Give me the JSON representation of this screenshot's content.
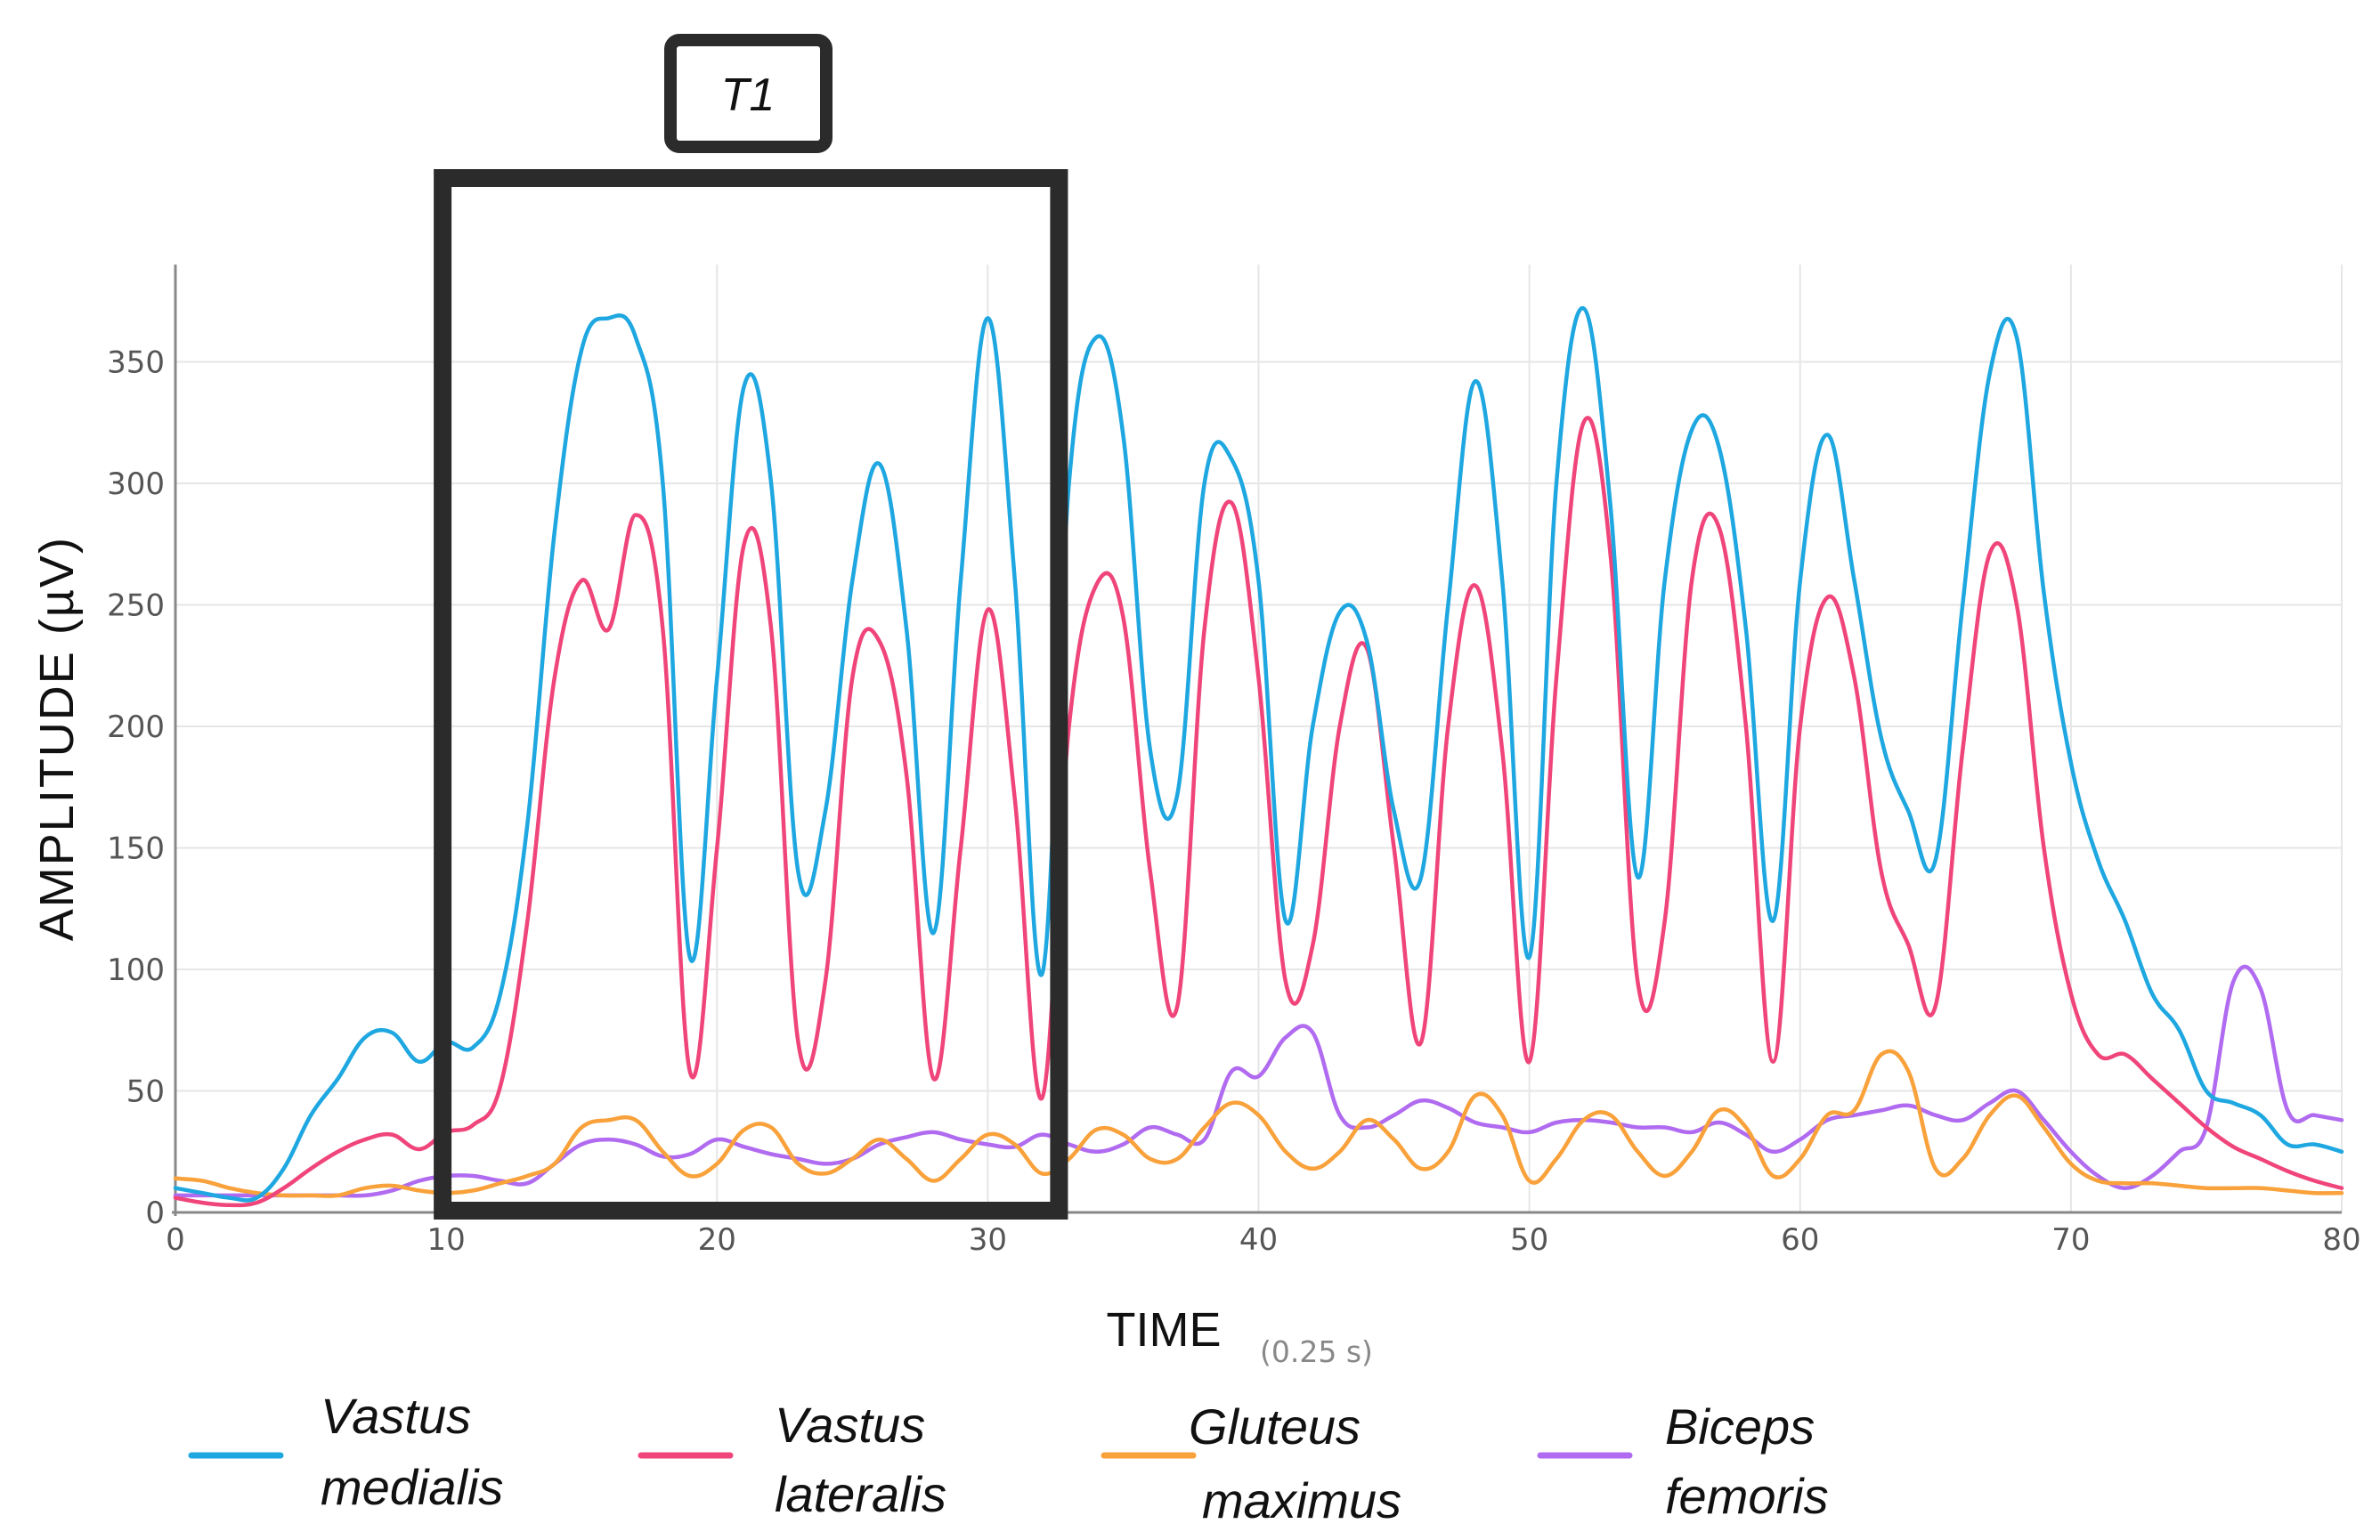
{
  "chart_data": {
    "type": "line",
    "title": "",
    "xlabel": "TIME",
    "xunit": "(0.25 s)",
    "ylabel": "AMPLITUDE  (µV)",
    "xlim": [
      0,
      80
    ],
    "ylim": [
      0,
      390
    ],
    "xticks": [
      0,
      10,
      20,
      30,
      40,
      50,
      60,
      70,
      80
    ],
    "yticks": [
      0,
      50,
      100,
      150,
      200,
      250,
      300,
      350
    ],
    "grid": true,
    "annotation": {
      "label": "T1",
      "x_start": 10,
      "x_end": 32.5
    },
    "legend_position": "bottom",
    "series": [
      {
        "name": "Vastus medialis",
        "label_lines": [
          "Vastus",
          "medialis"
        ],
        "color": "#1EA7E0",
        "points": [
          [
            0,
            10
          ],
          [
            1,
            8
          ],
          [
            2,
            6
          ],
          [
            3,
            6
          ],
          [
            4,
            18
          ],
          [
            5,
            40
          ],
          [
            6,
            55
          ],
          [
            7,
            72
          ],
          [
            8,
            74
          ],
          [
            9,
            62
          ],
          [
            10,
            70
          ],
          [
            11,
            68
          ],
          [
            12,
            90
          ],
          [
            13,
            160
          ],
          [
            14,
            280
          ],
          [
            15,
            355
          ],
          [
            16,
            368
          ],
          [
            17,
            360
          ],
          [
            18,
            300
          ],
          [
            19,
            105
          ],
          [
            20,
            220
          ],
          [
            21,
            340
          ],
          [
            22,
            300
          ],
          [
            23,
            140
          ],
          [
            24,
            165
          ],
          [
            25,
            260
          ],
          [
            26,
            308
          ],
          [
            27,
            240
          ],
          [
            28,
            115
          ],
          [
            29,
            260
          ],
          [
            30,
            368
          ],
          [
            31,
            260
          ],
          [
            32,
            98
          ],
          [
            33,
            300
          ],
          [
            34,
            360
          ],
          [
            35,
            320
          ],
          [
            36,
            190
          ],
          [
            37,
            172
          ],
          [
            38,
            300
          ],
          [
            39,
            310
          ],
          [
            40,
            260
          ],
          [
            41,
            120
          ],
          [
            42,
            200
          ],
          [
            43,
            247
          ],
          [
            44,
            235
          ],
          [
            45,
            165
          ],
          [
            46,
            138
          ],
          [
            47,
            250
          ],
          [
            48,
            342
          ],
          [
            49,
            260
          ],
          [
            50,
            105
          ],
          [
            51,
            300
          ],
          [
            52,
            372
          ],
          [
            53,
            290
          ],
          [
            54,
            138
          ],
          [
            55,
            260
          ],
          [
            56,
            322
          ],
          [
            57,
            315
          ],
          [
            58,
            240
          ],
          [
            59,
            120
          ],
          [
            60,
            260
          ],
          [
            61,
            320
          ],
          [
            62,
            260
          ],
          [
            63,
            195
          ],
          [
            64,
            165
          ],
          [
            65,
            145
          ],
          [
            66,
            250
          ],
          [
            67,
            345
          ],
          [
            68,
            360
          ],
          [
            69,
            255
          ],
          [
            70,
            185
          ],
          [
            71,
            145
          ],
          [
            72,
            120
          ],
          [
            73,
            90
          ],
          [
            74,
            75
          ],
          [
            75,
            50
          ],
          [
            76,
            45
          ],
          [
            77,
            40
          ],
          [
            78,
            28
          ],
          [
            79,
            28
          ],
          [
            80,
            25
          ]
        ]
      },
      {
        "name": "Vastus lateralis",
        "label_lines": [
          "Vastus",
          "lateralis"
        ],
        "color": "#F0457A",
        "points": [
          [
            0,
            6
          ],
          [
            1,
            4
          ],
          [
            2,
            3
          ],
          [
            3,
            4
          ],
          [
            4,
            10
          ],
          [
            5,
            18
          ],
          [
            6,
            25
          ],
          [
            7,
            30
          ],
          [
            8,
            32
          ],
          [
            9,
            26
          ],
          [
            10,
            33
          ],
          [
            11,
            36
          ],
          [
            12,
            52
          ],
          [
            13,
            120
          ],
          [
            14,
            220
          ],
          [
            15,
            260
          ],
          [
            16,
            240
          ],
          [
            17,
            287
          ],
          [
            18,
            240
          ],
          [
            19,
            58
          ],
          [
            20,
            150
          ],
          [
            21,
            275
          ],
          [
            22,
            240
          ],
          [
            23,
            70
          ],
          [
            24,
            95
          ],
          [
            25,
            220
          ],
          [
            26,
            235
          ],
          [
            27,
            180
          ],
          [
            28,
            55
          ],
          [
            29,
            150
          ],
          [
            30,
            248
          ],
          [
            31,
            170
          ],
          [
            32,
            47
          ],
          [
            33,
            200
          ],
          [
            34,
            258
          ],
          [
            35,
            245
          ],
          [
            36,
            140
          ],
          [
            37,
            85
          ],
          [
            38,
            240
          ],
          [
            39,
            292
          ],
          [
            40,
            220
          ],
          [
            41,
            95
          ],
          [
            42,
            110
          ],
          [
            43,
            200
          ],
          [
            44,
            232
          ],
          [
            45,
            150
          ],
          [
            46,
            70
          ],
          [
            47,
            200
          ],
          [
            48,
            258
          ],
          [
            49,
            190
          ],
          [
            50,
            62
          ],
          [
            51,
            220
          ],
          [
            52,
            325
          ],
          [
            53,
            270
          ],
          [
            54,
            95
          ],
          [
            55,
            120
          ],
          [
            56,
            260
          ],
          [
            57,
            282
          ],
          [
            58,
            200
          ],
          [
            59,
            62
          ],
          [
            60,
            200
          ],
          [
            61,
            253
          ],
          [
            62,
            220
          ],
          [
            63,
            140
          ],
          [
            64,
            110
          ],
          [
            65,
            85
          ],
          [
            66,
            190
          ],
          [
            67,
            271
          ],
          [
            68,
            250
          ],
          [
            69,
            150
          ],
          [
            70,
            90
          ],
          [
            71,
            65
          ],
          [
            72,
            65
          ],
          [
            73,
            55
          ],
          [
            74,
            45
          ],
          [
            75,
            35
          ],
          [
            76,
            27
          ],
          [
            77,
            22
          ],
          [
            78,
            17
          ],
          [
            79,
            13
          ],
          [
            80,
            10
          ]
        ]
      },
      {
        "name": "Gluteus maximus",
        "label_lines": [
          "Gluteus",
          "maximus"
        ],
        "color": "#F9A13A",
        "points": [
          [
            0,
            14
          ],
          [
            1,
            13
          ],
          [
            2,
            10
          ],
          [
            3,
            8
          ],
          [
            4,
            7
          ],
          [
            5,
            7
          ],
          [
            6,
            7
          ],
          [
            7,
            10
          ],
          [
            8,
            11
          ],
          [
            9,
            9
          ],
          [
            10,
            8
          ],
          [
            11,
            9
          ],
          [
            12,
            12
          ],
          [
            13,
            15
          ],
          [
            14,
            20
          ],
          [
            15,
            35
          ],
          [
            16,
            38
          ],
          [
            17,
            38
          ],
          [
            18,
            25
          ],
          [
            19,
            15
          ],
          [
            20,
            20
          ],
          [
            21,
            34
          ],
          [
            22,
            35
          ],
          [
            23,
            20
          ],
          [
            24,
            16
          ],
          [
            25,
            22
          ],
          [
            26,
            30
          ],
          [
            27,
            22
          ],
          [
            28,
            13
          ],
          [
            29,
            22
          ],
          [
            30,
            32
          ],
          [
            31,
            28
          ],
          [
            32,
            16
          ],
          [
            33,
            22
          ],
          [
            34,
            34
          ],
          [
            35,
            32
          ],
          [
            36,
            22
          ],
          [
            37,
            22
          ],
          [
            38,
            35
          ],
          [
            39,
            45
          ],
          [
            40,
            40
          ],
          [
            41,
            25
          ],
          [
            42,
            18
          ],
          [
            43,
            25
          ],
          [
            44,
            38
          ],
          [
            45,
            30
          ],
          [
            46,
            18
          ],
          [
            47,
            25
          ],
          [
            48,
            48
          ],
          [
            49,
            40
          ],
          [
            50,
            13
          ],
          [
            51,
            22
          ],
          [
            52,
            38
          ],
          [
            53,
            40
          ],
          [
            54,
            25
          ],
          [
            55,
            15
          ],
          [
            56,
            25
          ],
          [
            57,
            42
          ],
          [
            58,
            35
          ],
          [
            59,
            15
          ],
          [
            60,
            22
          ],
          [
            61,
            40
          ],
          [
            62,
            42
          ],
          [
            63,
            65
          ],
          [
            64,
            58
          ],
          [
            65,
            18
          ],
          [
            66,
            22
          ],
          [
            67,
            40
          ],
          [
            68,
            48
          ],
          [
            69,
            35
          ],
          [
            70,
            20
          ],
          [
            71,
            13
          ],
          [
            72,
            12
          ],
          [
            73,
            12
          ],
          [
            74,
            11
          ],
          [
            75,
            10
          ],
          [
            76,
            10
          ],
          [
            77,
            10
          ],
          [
            78,
            9
          ],
          [
            79,
            8
          ],
          [
            80,
            8
          ]
        ]
      },
      {
        "name": "Biceps femoris",
        "label_lines": [
          "Biceps",
          "femoris"
        ],
        "color": "#B06BF0",
        "points": [
          [
            0,
            7
          ],
          [
            1,
            7
          ],
          [
            2,
            7
          ],
          [
            3,
            7
          ],
          [
            4,
            7
          ],
          [
            5,
            7
          ],
          [
            6,
            7
          ],
          [
            7,
            7
          ],
          [
            8,
            9
          ],
          [
            9,
            13
          ],
          [
            10,
            15
          ],
          [
            11,
            15
          ],
          [
            12,
            13
          ],
          [
            13,
            12
          ],
          [
            14,
            20
          ],
          [
            15,
            28
          ],
          [
            16,
            30
          ],
          [
            17,
            28
          ],
          [
            18,
            23
          ],
          [
            19,
            24
          ],
          [
            20,
            30
          ],
          [
            21,
            27
          ],
          [
            22,
            24
          ],
          [
            23,
            22
          ],
          [
            24,
            20
          ],
          [
            25,
            22
          ],
          [
            26,
            28
          ],
          [
            27,
            31
          ],
          [
            28,
            33
          ],
          [
            29,
            30
          ],
          [
            30,
            28
          ],
          [
            31,
            27
          ],
          [
            32,
            32
          ],
          [
            33,
            28
          ],
          [
            34,
            25
          ],
          [
            35,
            28
          ],
          [
            36,
            35
          ],
          [
            37,
            32
          ],
          [
            38,
            30
          ],
          [
            39,
            58
          ],
          [
            40,
            56
          ],
          [
            41,
            72
          ],
          [
            42,
            74
          ],
          [
            43,
            40
          ],
          [
            44,
            35
          ],
          [
            45,
            40
          ],
          [
            46,
            46
          ],
          [
            47,
            43
          ],
          [
            48,
            37
          ],
          [
            49,
            35
          ],
          [
            50,
            33
          ],
          [
            51,
            37
          ],
          [
            52,
            38
          ],
          [
            53,
            37
          ],
          [
            54,
            35
          ],
          [
            55,
            35
          ],
          [
            56,
            33
          ],
          [
            57,
            37
          ],
          [
            58,
            32
          ],
          [
            59,
            25
          ],
          [
            60,
            30
          ],
          [
            61,
            38
          ],
          [
            62,
            40
          ],
          [
            63,
            42
          ],
          [
            64,
            44
          ],
          [
            65,
            40
          ],
          [
            66,
            38
          ],
          [
            67,
            45
          ],
          [
            68,
            50
          ],
          [
            69,
            38
          ],
          [
            70,
            25
          ],
          [
            71,
            15
          ],
          [
            72,
            10
          ],
          [
            73,
            15
          ],
          [
            74,
            25
          ],
          [
            75,
            35
          ],
          [
            76,
            95
          ],
          [
            77,
            92
          ],
          [
            78,
            42
          ],
          [
            79,
            40
          ],
          [
            80,
            38
          ]
        ]
      }
    ]
  }
}
